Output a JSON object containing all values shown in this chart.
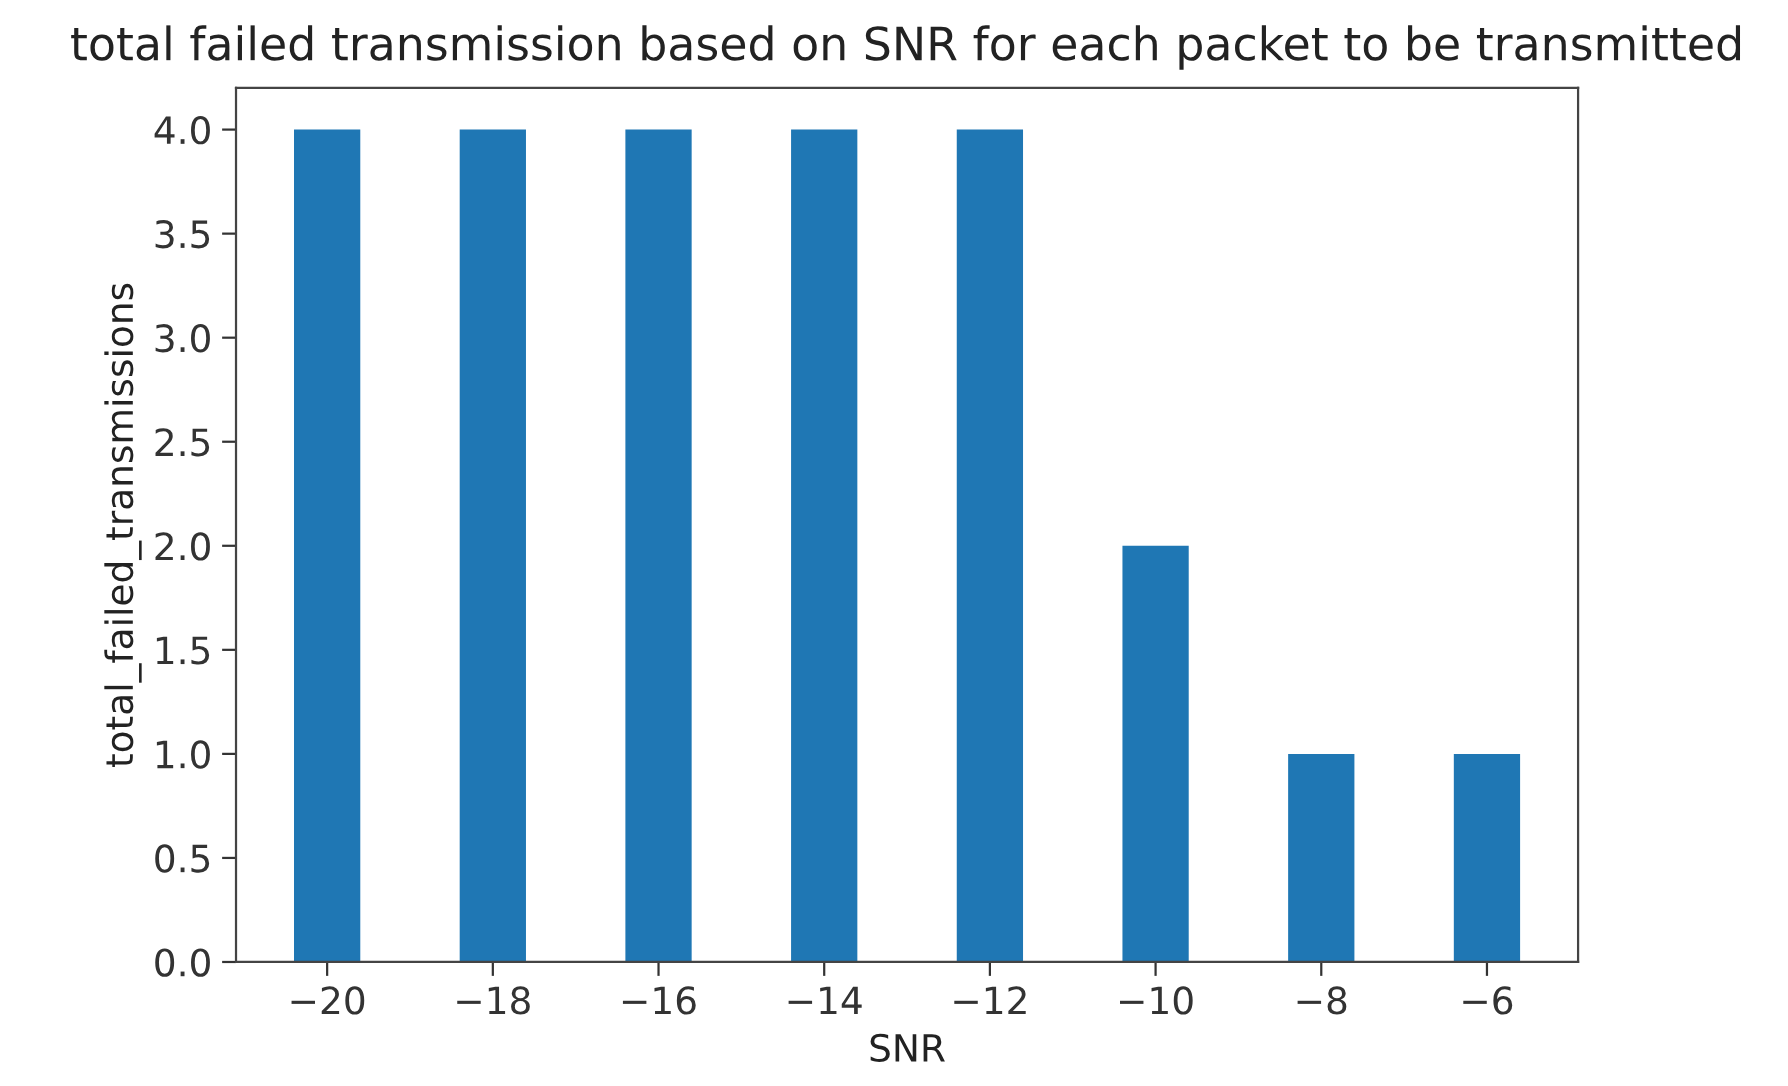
{
  "chart_data": {
    "type": "bar",
    "title": "total failed transmission based on SNR for each packet to be transmitted",
    "xlabel": "SNR",
    "ylabel": "total_failed_transmissions",
    "x": [
      -20,
      -18,
      -16,
      -14,
      -12,
      -10,
      -8,
      -6
    ],
    "values": [
      4,
      4,
      4,
      4,
      4,
      2,
      1,
      1
    ],
    "color": "#1f77b4",
    "xlim": [
      -21.1,
      -4.9
    ],
    "xticks": [
      {
        "value": -20,
        "label": "−20"
      },
      {
        "value": -18,
        "label": "−18"
      },
      {
        "value": -16,
        "label": "−16"
      },
      {
        "value": -14,
        "label": "−14"
      },
      {
        "value": -12,
        "label": "−12"
      },
      {
        "value": -10,
        "label": "−10"
      },
      {
        "value": -8,
        "label": "−8"
      },
      {
        "value": -6,
        "label": "−6"
      }
    ],
    "ylim": [
      0,
      4.2
    ],
    "yticks": [
      {
        "value": 0,
        "label": "0.0"
      },
      {
        "value": 0.5,
        "label": "0.5"
      },
      {
        "value": 1,
        "label": "1.0"
      },
      {
        "value": 1.5,
        "label": "1.5"
      },
      {
        "value": 2,
        "label": "2.0"
      },
      {
        "value": 2.5,
        "label": "2.5"
      },
      {
        "value": 3,
        "label": "3.0"
      },
      {
        "value": 3.5,
        "label": "3.5"
      },
      {
        "value": 4,
        "label": "4.0"
      }
    ]
  }
}
